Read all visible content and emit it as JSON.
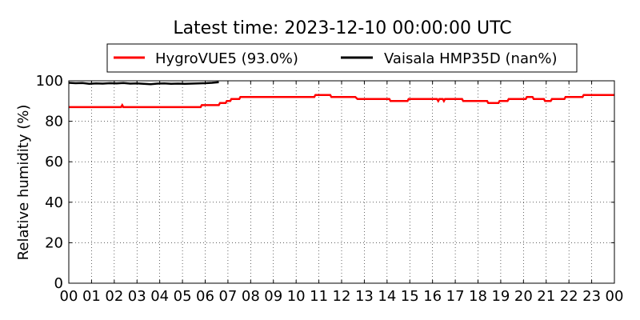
{
  "chart_data": {
    "type": "line",
    "title": "Latest time: 2023-12-10 00:00:00 UTC",
    "ylabel": "Relative humidity (%)",
    "xlabel": "",
    "xlim": [
      0,
      24
    ],
    "ylim": [
      0,
      100
    ],
    "x_ticks": [
      "00",
      "01",
      "02",
      "03",
      "04",
      "05",
      "06",
      "07",
      "08",
      "09",
      "10",
      "11",
      "12",
      "13",
      "14",
      "15",
      "16",
      "17",
      "18",
      "19",
      "20",
      "21",
      "22",
      "23",
      "00"
    ],
    "y_ticks": [
      0,
      20,
      40,
      60,
      80,
      100
    ],
    "grid": true,
    "legend_position": "top",
    "series": [
      {
        "name": "HygroVUE5 (93.0%)",
        "color": "#ff0000",
        "points": [
          [
            0.0,
            87
          ],
          [
            2.3,
            87
          ],
          [
            2.35,
            88
          ],
          [
            2.4,
            87
          ],
          [
            5.8,
            87
          ],
          [
            5.85,
            88
          ],
          [
            6.6,
            88
          ],
          [
            6.65,
            89
          ],
          [
            6.9,
            89
          ],
          [
            6.95,
            90
          ],
          [
            7.1,
            90
          ],
          [
            7.15,
            91
          ],
          [
            7.5,
            91
          ],
          [
            7.55,
            92
          ],
          [
            10.8,
            92
          ],
          [
            10.85,
            93
          ],
          [
            11.5,
            93
          ],
          [
            11.55,
            92
          ],
          [
            12.6,
            92
          ],
          [
            12.7,
            91
          ],
          [
            14.1,
            91
          ],
          [
            14.15,
            90
          ],
          [
            14.9,
            90
          ],
          [
            14.95,
            91
          ],
          [
            16.2,
            91
          ],
          [
            16.25,
            90
          ],
          [
            16.3,
            91
          ],
          [
            16.45,
            91
          ],
          [
            16.5,
            90
          ],
          [
            16.55,
            91
          ],
          [
            17.3,
            91
          ],
          [
            17.35,
            90
          ],
          [
            18.4,
            90
          ],
          [
            18.45,
            89
          ],
          [
            18.9,
            89
          ],
          [
            18.95,
            90
          ],
          [
            19.3,
            90
          ],
          [
            19.35,
            91
          ],
          [
            20.1,
            91
          ],
          [
            20.15,
            92
          ],
          [
            20.4,
            92
          ],
          [
            20.45,
            91
          ],
          [
            20.9,
            91
          ],
          [
            20.95,
            90
          ],
          [
            21.2,
            90
          ],
          [
            21.25,
            91
          ],
          [
            21.8,
            91
          ],
          [
            21.85,
            92
          ],
          [
            22.6,
            92
          ],
          [
            22.65,
            93
          ],
          [
            24.0,
            93
          ]
        ]
      },
      {
        "name": "Vaisala HMP35D (nan%)",
        "color": "#000000",
        "points": [
          [
            0.0,
            99.0
          ],
          [
            0.3,
            98.8
          ],
          [
            0.6,
            98.9
          ],
          [
            0.9,
            98.5
          ],
          [
            1.2,
            98.7
          ],
          [
            1.5,
            98.6
          ],
          [
            1.8,
            98.8
          ],
          [
            2.1,
            98.7
          ],
          [
            2.4,
            98.9
          ],
          [
            2.7,
            98.6
          ],
          [
            3.0,
            98.7
          ],
          [
            3.3,
            98.5
          ],
          [
            3.6,
            98.3
          ],
          [
            3.9,
            98.6
          ],
          [
            4.2,
            98.7
          ],
          [
            4.5,
            98.5
          ],
          [
            4.8,
            98.6
          ],
          [
            5.1,
            98.5
          ],
          [
            5.4,
            98.6
          ],
          [
            5.7,
            98.7
          ],
          [
            6.0,
            98.8
          ],
          [
            6.3,
            99.0
          ],
          [
            6.6,
            99.3
          ]
        ]
      }
    ]
  }
}
